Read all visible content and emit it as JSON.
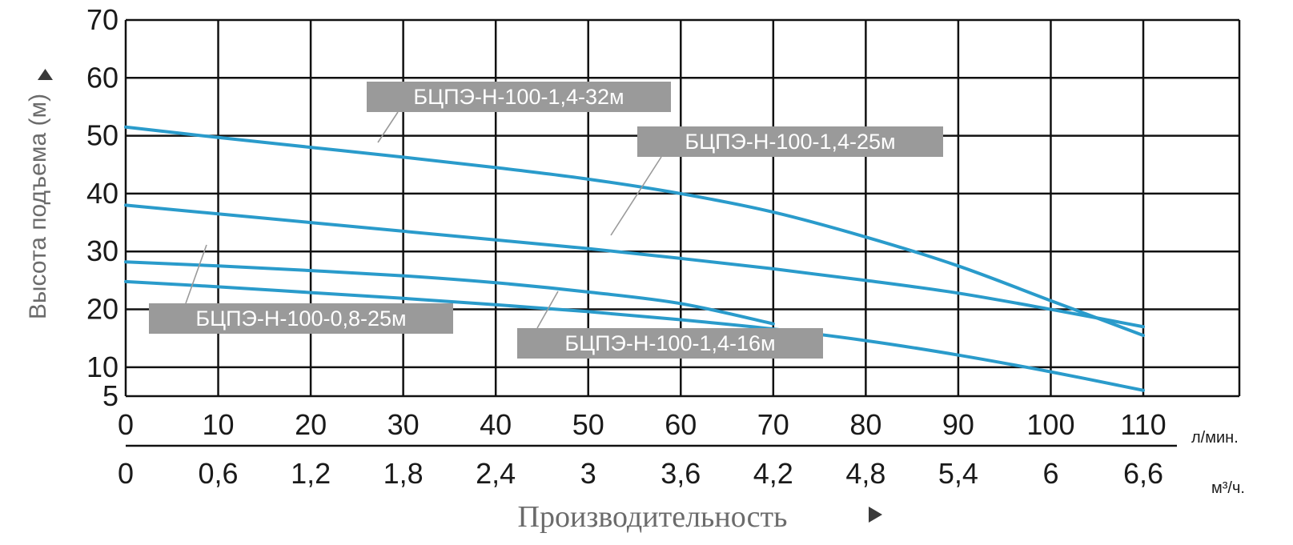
{
  "chart_data": {
    "type": "line",
    "ylabel": "Высота подъема (м)",
    "xlabel": "Производительность",
    "y_ticks": [
      "5",
      "10",
      "20",
      "30",
      "40",
      "50",
      "60",
      "70"
    ],
    "y_values": [
      5,
      10,
      20,
      30,
      40,
      50,
      60,
      70
    ],
    "x_ticks_top": [
      "0",
      "10",
      "20",
      "30",
      "40",
      "50",
      "60",
      "70",
      "80",
      "90",
      "100",
      "110"
    ],
    "x_unit_top": "л/мин.",
    "x_ticks_bottom": [
      "0",
      "0,6",
      "1,2",
      "1,8",
      "2,4",
      "3",
      "3,6",
      "4,2",
      "4,8",
      "5,4",
      "6",
      "6,6"
    ],
    "x_unit_bottom": "м³/ч.",
    "xlim": [
      0,
      110
    ],
    "ylim": [
      5,
      70
    ],
    "grid": true,
    "series_color": "#2a9bcb",
    "series": [
      {
        "name": "БЦПЭ-Н-100-1,4-32м",
        "x": [
          0,
          10,
          20,
          30,
          40,
          50,
          60,
          70,
          80,
          90,
          100,
          110
        ],
        "y": [
          51.5,
          49.7,
          48,
          46.3,
          44.5,
          42.5,
          40,
          36.8,
          32.5,
          27.5,
          21.5,
          15.5
        ]
      },
      {
        "name": "БЦПЭ-Н-100-1,4-25м",
        "x": [
          0,
          10,
          20,
          30,
          40,
          50,
          60,
          70,
          80,
          90,
          100,
          110
        ],
        "y": [
          38,
          36.5,
          35,
          33.5,
          32,
          30.5,
          28.8,
          27,
          25,
          22.8,
          20,
          17
        ]
      },
      {
        "name": "БЦПЭ-Н-100-0,8-25м",
        "x": [
          0,
          10,
          20,
          30,
          40,
          50,
          60,
          70
        ],
        "y": [
          28.2,
          27.5,
          26.7,
          25.8,
          24.6,
          23,
          21,
          17.5
        ]
      },
      {
        "name": "БЦПЭ-Н-100-1,4-16м",
        "x": [
          0,
          10,
          20,
          30,
          40,
          50,
          60,
          70,
          80,
          90,
          100,
          110
        ],
        "y": [
          24.8,
          23.9,
          22.9,
          21.9,
          20.8,
          19.6,
          18.2,
          16.6,
          14.6,
          12.1,
          9.2,
          6
        ]
      }
    ]
  }
}
